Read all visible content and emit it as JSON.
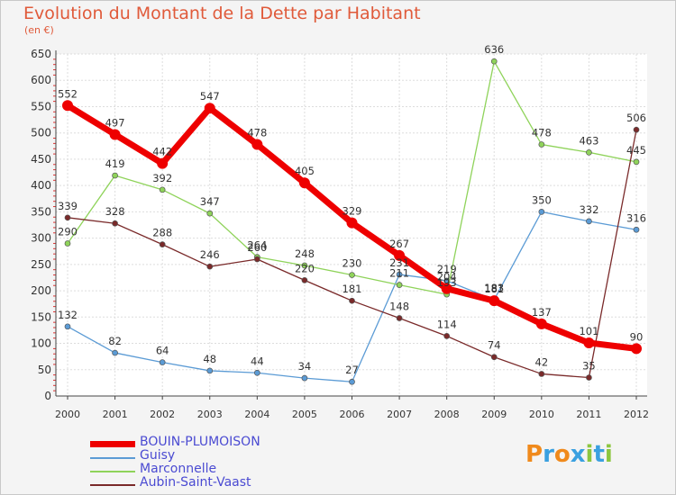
{
  "title": "Evolution du Montant de la Dette par Habitant",
  "subtitle": "(en €)",
  "brand": {
    "letters": [
      "P",
      "r",
      "o",
      "x",
      "i",
      "t",
      "i"
    ],
    "colors": [
      "#f08a1c",
      "#3aa0e0",
      "#f08a1c",
      "#3aa0e0",
      "#8cc63f",
      "#3aa0e0",
      "#8cc63f"
    ]
  },
  "chart_data": {
    "type": "line",
    "title": "Evolution du Montant de la Dette par Habitant",
    "ylabel": "(en €)",
    "xlabel": "",
    "x": [
      "2000",
      "2001",
      "2002",
      "2003",
      "2004",
      "2005",
      "2006",
      "2007",
      "2008",
      "2009",
      "2010",
      "2011",
      "2012"
    ],
    "ylim": [
      0,
      650
    ],
    "yticks": [
      0,
      50,
      100,
      150,
      200,
      250,
      300,
      350,
      400,
      450,
      500,
      550,
      600,
      650
    ],
    "grid": true,
    "legend_position": "bottom-left",
    "series": [
      {
        "name": "BOUIN-PLUMOISON",
        "color": "#ee0000",
        "thick": true,
        "values": [
          552,
          497,
          442,
          547,
          478,
          405,
          329,
          267,
          204,
          181,
          137,
          101,
          90
        ]
      },
      {
        "name": "Guisy",
        "color": "#5b9bd5",
        "thick": false,
        "values": [
          132,
          82,
          64,
          48,
          44,
          34,
          27,
          231,
          219,
          183,
          350,
          332,
          316
        ]
      },
      {
        "name": "Marconnelle",
        "color": "#8fd35a",
        "thick": false,
        "values": [
          290,
          419,
          392,
          347,
          264,
          248,
          230,
          211,
          193,
          636,
          478,
          463,
          445
        ]
      },
      {
        "name": "Aubin-Saint-Vaast",
        "color": "#7a2a2a",
        "thick": false,
        "values": [
          339,
          328,
          288,
          246,
          260,
          220,
          181,
          148,
          114,
          74,
          42,
          35,
          506
        ]
      }
    ]
  }
}
